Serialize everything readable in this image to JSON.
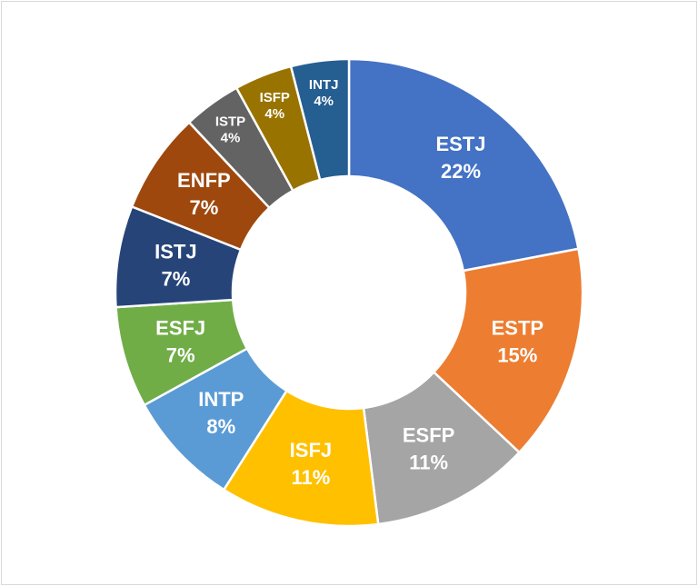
{
  "chart_data": {
    "type": "pie",
    "variant": "donut",
    "title": "",
    "legend": "none",
    "slices": [
      {
        "label": "ESTJ",
        "value": 22,
        "percent_label": "22%",
        "color": "#4472C4"
      },
      {
        "label": "ESTP",
        "value": 15,
        "percent_label": "15%",
        "color": "#ED7D31"
      },
      {
        "label": "ESFP",
        "value": 11,
        "percent_label": "11%",
        "color": "#A5A5A5"
      },
      {
        "label": "ISFJ",
        "value": 11,
        "percent_label": "11%",
        "color": "#FFC000"
      },
      {
        "label": "INTP",
        "value": 8,
        "percent_label": "8%",
        "color": "#5B9BD5"
      },
      {
        "label": "ESFJ",
        "value": 7,
        "percent_label": "7%",
        "color": "#70AD47"
      },
      {
        "label": "ISTJ",
        "value": 7,
        "percent_label": "7%",
        "color": "#264478"
      },
      {
        "label": "ENFP",
        "value": 7,
        "percent_label": "7%",
        "color": "#9E480E"
      },
      {
        "label": "ISTP",
        "value": 4,
        "percent_label": "4%",
        "color": "#636363"
      },
      {
        "label": "ISFP",
        "value": 4,
        "percent_label": "4%",
        "color": "#997300"
      },
      {
        "label": "INTJ",
        "value": 4,
        "percent_label": "4%",
        "color": "#255E91"
      }
    ]
  }
}
